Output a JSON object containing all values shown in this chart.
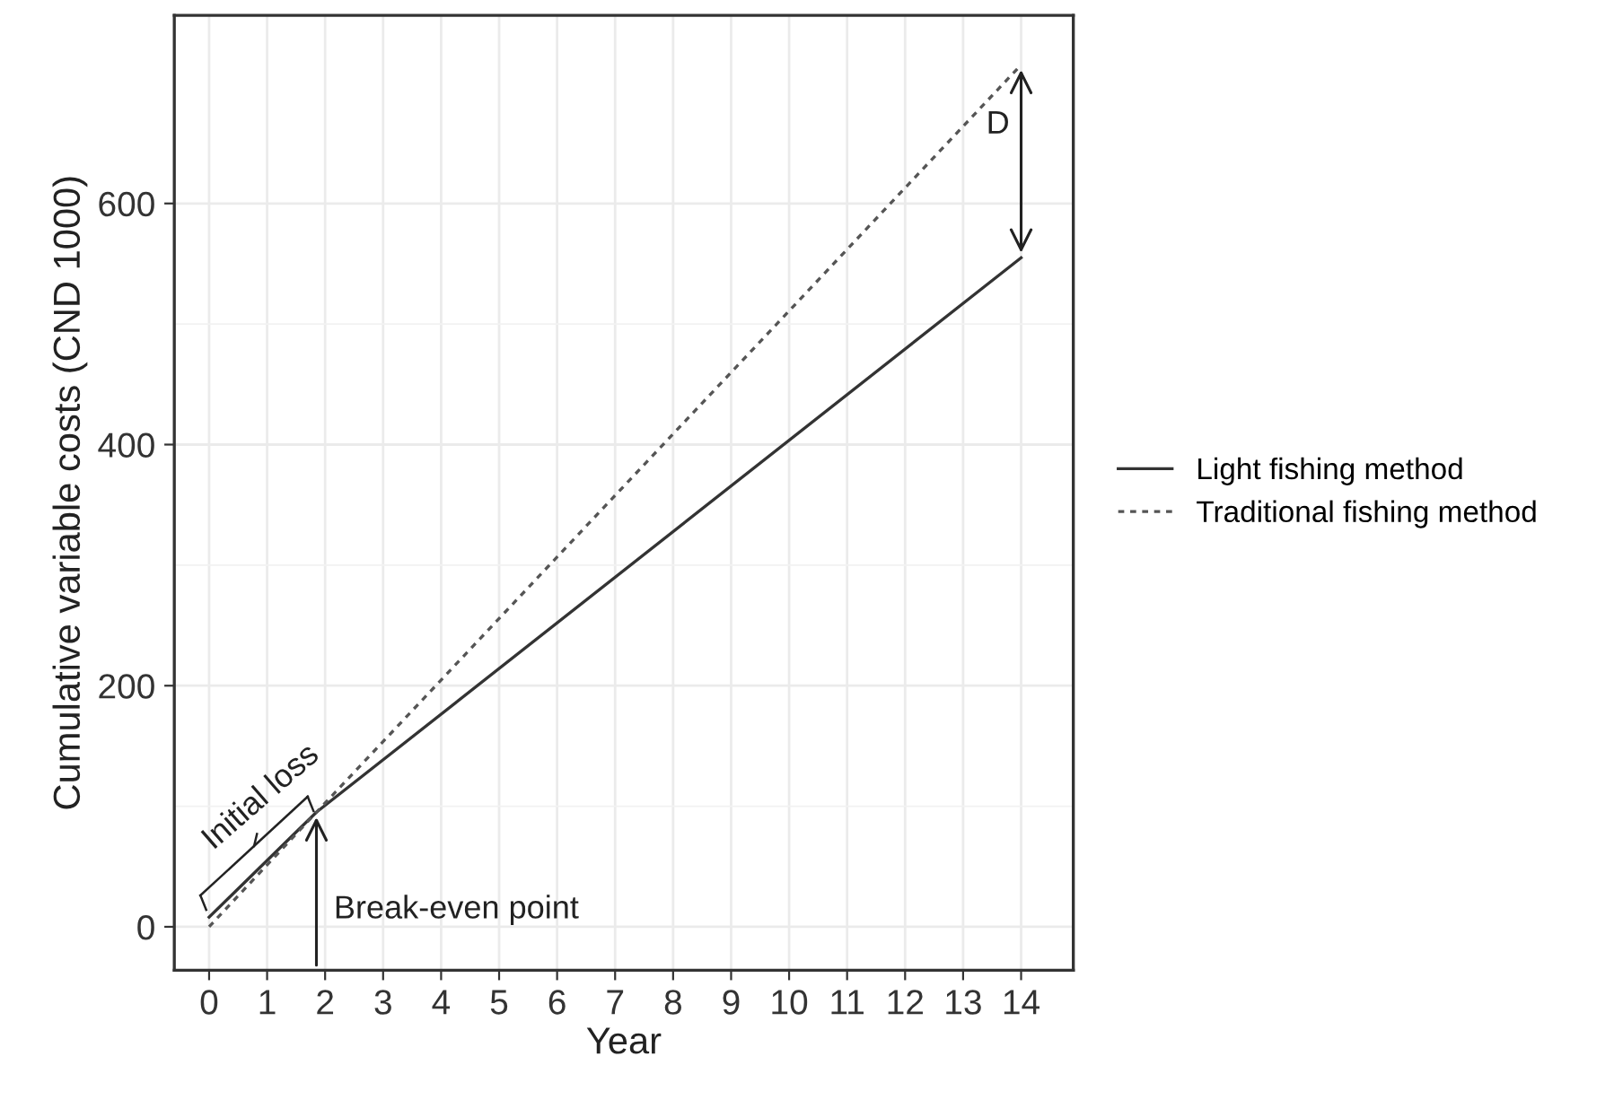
{
  "chart_data": {
    "type": "line",
    "xlabel": "Year",
    "ylabel": "Cumulative variable costs (CND 1000)",
    "series": [
      {
        "name": "Light fishing method",
        "color": "#333333",
        "line_style": "solid",
        "x": [
          0,
          1.85,
          14
        ],
        "values": [
          8,
          95,
          555
        ]
      },
      {
        "name": "Traditional fishing method",
        "color": "#555555",
        "line_style": "dotted",
        "x": [
          0,
          1.85,
          14
        ],
        "values": [
          0,
          95,
          715
        ]
      }
    ],
    "xlim": [
      -0.6,
      14.9
    ],
    "xticks": [
      0,
      1,
      2,
      3,
      4,
      5,
      6,
      7,
      8,
      9,
      10,
      11,
      12,
      13,
      14
    ],
    "ylim": [
      -36,
      756
    ],
    "yticks": [
      0,
      200,
      400,
      600
    ],
    "grid": true,
    "legend": "right",
    "annotations": [
      {
        "text": "Initial loss",
        "x": 0.9,
        "y": 52
      },
      {
        "text": "Break-even point",
        "x": 1.85,
        "y": 95
      },
      "D"
    ]
  }
}
